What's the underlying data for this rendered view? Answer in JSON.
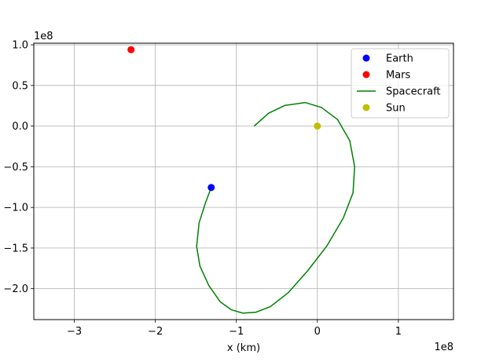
{
  "chart_data": {
    "type": "scatter",
    "xlabel": "x (km)",
    "ylabel": "",
    "x_offset_text": "1e8",
    "y_offset_text": "1e8",
    "xlim": [
      -350000000.0,
      168000000.0
    ],
    "ylim": [
      -238000000.0,
      102000000.0
    ],
    "x_ticks": [
      -300000000.0,
      -200000000.0,
      -100000000.0,
      0,
      100000000.0
    ],
    "x_tick_labels": [
      "−3",
      "−2",
      "−1",
      "0",
      "1"
    ],
    "y_ticks": [
      -200000000.0,
      -150000000.0,
      -100000000.0,
      -50000000.0,
      0,
      50000000.0,
      100000000.0
    ],
    "y_tick_labels": [
      "−2.0",
      "−1.5",
      "−1.0",
      "−0.5",
      "0.0",
      "0.5",
      "1.0"
    ],
    "grid": true,
    "legend_position": "top-right",
    "series": [
      {
        "name": "Earth",
        "kind": "point",
        "color": "#0000ff",
        "x": [
          -131000000.0
        ],
        "y": [
          -75500000.0
        ]
      },
      {
        "name": "Mars",
        "kind": "point",
        "color": "#ff0000",
        "x": [
          -230000000.0
        ],
        "y": [
          94000000.0
        ]
      },
      {
        "name": "Spacecraft",
        "kind": "line",
        "color": "#008000",
        "x": [
          -78000000.0,
          -60000000.0,
          -40000000.0,
          -15000000.0,
          5000000.0,
          25000000.0,
          40000000.0,
          46000000.0,
          44000000.0,
          32000000.0,
          12000000.0,
          -12000000.0,
          -36000000.0,
          -58000000.0,
          -76000000.0,
          -92000000.0,
          -106000000.0,
          -120000000.0,
          -134000000.0,
          -145000000.0,
          -149000000.0,
          -146000000.0,
          -138000000.0,
          -131000000.0
        ],
        "y": [
          0,
          16000000.0,
          25500000.0,
          29000000.0,
          23000000.0,
          8000000.0,
          -18000000.0,
          -50000000.0,
          -82000000.0,
          -113000000.0,
          -147000000.0,
          -178000000.0,
          -205000000.0,
          -222000000.0,
          -229000000.0,
          -230000000.0,
          -226000000.0,
          -216000000.0,
          -196000000.0,
          -172000000.0,
          -148000000.0,
          -119000000.0,
          -94000000.0,
          -75500000.0
        ]
      },
      {
        "name": "Sun",
        "kind": "point",
        "color": "#bfbf00",
        "x": [
          0
        ],
        "y": [
          0
        ]
      }
    ]
  }
}
